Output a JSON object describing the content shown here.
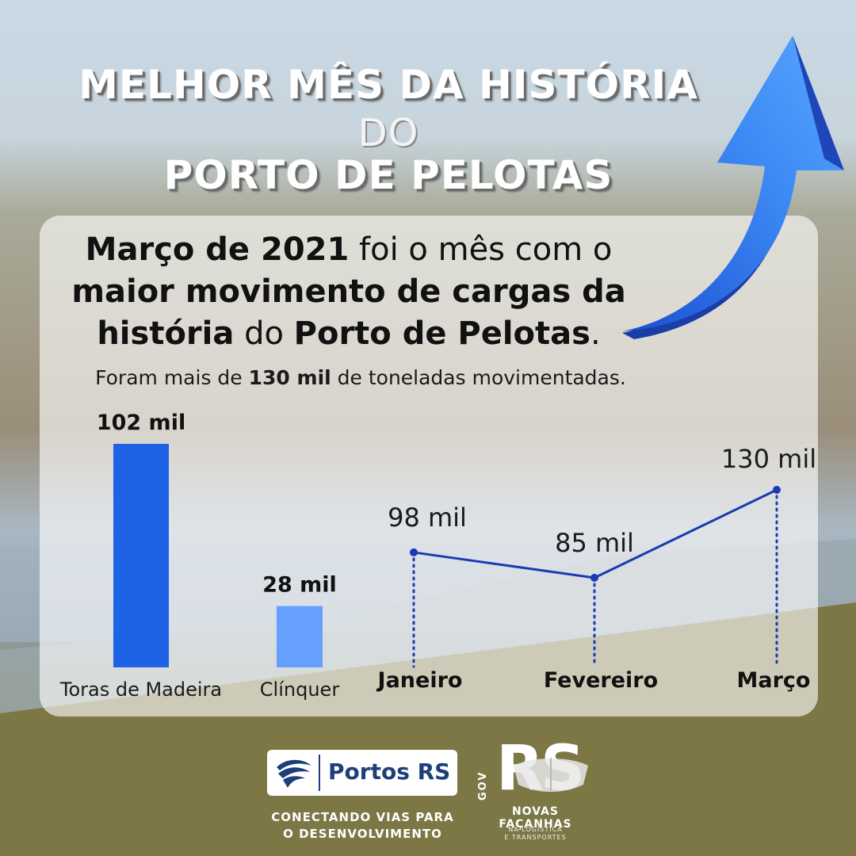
{
  "header": {
    "title_line1": "MELHOR MÊS DA HISTÓRIA",
    "title_line2": "DO",
    "title_line3": "PORTO DE PELOTAS"
  },
  "headline": {
    "l1_bold": "Março de 2021",
    "l1_rest": " foi o mês com o",
    "l2_bold": "maior movimento de cargas da",
    "l3_bold_a": "história",
    "l3_mid": " do ",
    "l3_bold_b": "Porto de Pelotas",
    "l3_end": "."
  },
  "subline": {
    "pre": "Foram mais de ",
    "bold": "130 mil",
    "post": " de toneladas movimentadas."
  },
  "chart_data": [
    {
      "type": "bar",
      "categories": [
        "Toras de Madeira",
        "Clínquer"
      ],
      "values": [
        102,
        28
      ],
      "data_labels": [
        "102 mil",
        "28 mil"
      ],
      "colors": [
        "#1e63e6",
        "#66a0ff"
      ]
    },
    {
      "type": "line",
      "x": [
        "Janeiro",
        "Fevereiro",
        "Março"
      ],
      "values": [
        98,
        85,
        130
      ],
      "data_labels": [
        "98 mil",
        "85 mil",
        "130 mil"
      ],
      "color": "#1a3bb3"
    }
  ],
  "footer": {
    "portos_name": "Portos RS",
    "slogan_line1": "CONECTANDO VIAS PARA",
    "slogan_line2": "O DESENVOLVIMENTO",
    "gov_label": "GOV",
    "rs_mark": "RS",
    "novas": "NOVAS FAÇANHAS",
    "na_log1": "NA LOGÍSTICA",
    "na_log2": "E TRANSPORTES"
  },
  "colors": {
    "arrow": "#2f7bf0",
    "portos_brand": "#1c3f7a"
  },
  "icons": [
    "up-arrow-icon",
    "portos-wave-icon",
    "rs-mask-icon"
  ]
}
